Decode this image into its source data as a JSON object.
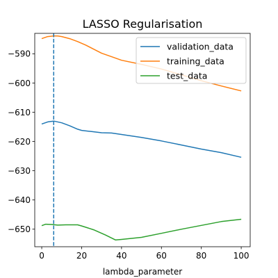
{
  "chart_data": {
    "type": "line",
    "title": "LASSO Regularisation",
    "xlabel": "lambda_parameter",
    "ylabel": "",
    "xlim": [
      -3.5,
      104.5
    ],
    "ylim": [
      -656,
      -583
    ],
    "xticks": [
      0,
      20,
      40,
      60,
      80,
      100
    ],
    "yticks": [
      -590,
      -600,
      -610,
      -620,
      -630,
      -640,
      -650
    ],
    "grid": false,
    "legend_position": "upper right",
    "vline": {
      "x": 6,
      "style": "dashed",
      "color": "#1f77b4"
    },
    "series": [
      {
        "name": "validation_data",
        "color": "#1f77b4",
        "x": [
          0,
          3,
          6,
          10,
          14,
          18,
          20,
          25,
          30,
          35,
          40,
          50,
          60,
          70,
          80,
          90,
          100
        ],
        "y": [
          -614.0,
          -613.3,
          -613.0,
          -613.6,
          -614.6,
          -615.8,
          -616.2,
          -616.6,
          -617.0,
          -617.1,
          -617.6,
          -618.6,
          -619.8,
          -621.2,
          -622.6,
          -623.8,
          -625.4
        ]
      },
      {
        "name": "training_data",
        "color": "#ff7f0e",
        "x": [
          0,
          3,
          6,
          8,
          10,
          14,
          18,
          22,
          26,
          30,
          35,
          40,
          50,
          60,
          70,
          80,
          90,
          100
        ],
        "y": [
          -584.8,
          -584.1,
          -583.9,
          -583.9,
          -584.1,
          -584.8,
          -585.8,
          -587.0,
          -588.4,
          -589.8,
          -591.0,
          -592.2,
          -593.6,
          -595.2,
          -597.2,
          -599.2,
          -601.0,
          -602.7
        ]
      },
      {
        "name": "test_data",
        "color": "#2ca02c",
        "x": [
          0,
          2,
          5,
          8,
          12,
          18,
          20,
          26,
          32,
          37,
          40,
          50,
          60,
          70,
          80,
          90,
          100
        ],
        "y": [
          -648.8,
          -648.3,
          -648.4,
          -648.6,
          -648.5,
          -648.5,
          -648.9,
          -650.2,
          -652.0,
          -653.7,
          -653.5,
          -652.8,
          -651.4,
          -650.0,
          -648.7,
          -647.4,
          -646.6
        ]
      }
    ]
  }
}
